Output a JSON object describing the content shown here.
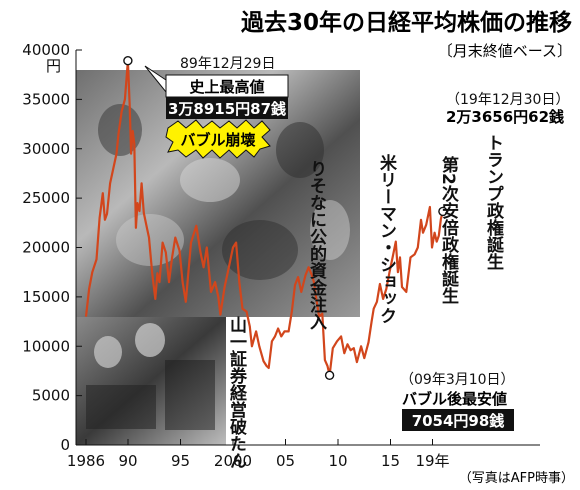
{
  "chart_data": {
    "type": "line",
    "title": "過去30年の日経平均株価の推移",
    "subtitle": "〔月末終値ベース〕",
    "ylabel": "円",
    "xlabel": "",
    "ylim": [
      0,
      40000
    ],
    "yticks": [
      0,
      5000,
      10000,
      15000,
      20000,
      25000,
      30000,
      35000,
      40000
    ],
    "xticks": [
      {
        "year": 1986,
        "label": "1986"
      },
      {
        "year": 1990,
        "label": "90"
      },
      {
        "year": 1995,
        "label": "95"
      },
      {
        "year": 2000,
        "label": "2000"
      },
      {
        "year": 2005,
        "label": "05"
      },
      {
        "year": 2010,
        "label": "10"
      },
      {
        "year": 2015,
        "label": "15"
      },
      {
        "year": 2019,
        "label": "19年"
      }
    ],
    "grid": false,
    "series": [
      {
        "color": "#d2461c",
        "points": [
          [
            1986.0,
            13000
          ],
          [
            1986.3,
            15800
          ],
          [
            1986.6,
            17500
          ],
          [
            1987.0,
            18800
          ],
          [
            1987.3,
            23000
          ],
          [
            1987.6,
            25500
          ],
          [
            1987.8,
            22800
          ],
          [
            1988.0,
            23400
          ],
          [
            1988.3,
            26500
          ],
          [
            1988.6,
            28000
          ],
          [
            1988.9,
            29500
          ],
          [
            1989.1,
            31500
          ],
          [
            1989.4,
            33800
          ],
          [
            1989.7,
            35000
          ],
          [
            1989.99,
            38915
          ],
          [
            1990.15,
            34600
          ],
          [
            1990.3,
            29500
          ],
          [
            1990.45,
            31800
          ],
          [
            1990.6,
            30500
          ],
          [
            1990.75,
            22000
          ],
          [
            1990.9,
            24500
          ],
          [
            1991.1,
            23700
          ],
          [
            1991.3,
            26500
          ],
          [
            1991.5,
            23500
          ],
          [
            1991.8,
            22000
          ],
          [
            1992.0,
            21000
          ],
          [
            1992.3,
            17500
          ],
          [
            1992.6,
            14800
          ],
          [
            1992.8,
            17400
          ],
          [
            1993.0,
            16500
          ],
          [
            1993.3,
            20500
          ],
          [
            1993.6,
            19500
          ],
          [
            1993.9,
            16500
          ],
          [
            1994.2,
            19000
          ],
          [
            1994.5,
            21000
          ],
          [
            1994.9,
            19700
          ],
          [
            1995.2,
            16500
          ],
          [
            1995.5,
            14500
          ],
          [
            1995.75,
            17500
          ],
          [
            1996.0,
            20500
          ],
          [
            1996.5,
            22200
          ],
          [
            1996.9,
            19500
          ],
          [
            1997.2,
            18000
          ],
          [
            1997.5,
            20000
          ],
          [
            1997.9,
            15500
          ],
          [
            1998.3,
            16500
          ],
          [
            1998.6,
            15000
          ],
          [
            1998.8,
            13200
          ],
          [
            1999.2,
            16000
          ],
          [
            1999.5,
            17500
          ],
          [
            2000.0,
            20000
          ],
          [
            2000.3,
            20500
          ],
          [
            2000.6,
            16500
          ],
          [
            2000.9,
            13800
          ],
          [
            2001.3,
            13500
          ],
          [
            2001.6,
            12000
          ],
          [
            2001.8,
            10000
          ],
          [
            2002.2,
            11500
          ],
          [
            2002.5,
            10000
          ],
          [
            2002.9,
            8500
          ],
          [
            2003.2,
            8000
          ],
          [
            2003.4,
            7800
          ],
          [
            2003.7,
            10500
          ],
          [
            2004.0,
            11000
          ],
          [
            2004.3,
            11800
          ],
          [
            2004.6,
            11000
          ],
          [
            2004.9,
            11500
          ],
          [
            2005.3,
            11500
          ],
          [
            2005.6,
            13500
          ],
          [
            2005.9,
            16200
          ],
          [
            2006.2,
            17000
          ],
          [
            2006.5,
            15500
          ],
          [
            2006.9,
            17200
          ],
          [
            2007.2,
            18000
          ],
          [
            2007.5,
            17200
          ],
          [
            2007.7,
            16500
          ],
          [
            2007.9,
            15000
          ],
          [
            2008.2,
            13000
          ],
          [
            2008.5,
            13300
          ],
          [
            2008.75,
            8600
          ],
          [
            2009.0,
            8000
          ],
          [
            2009.2,
            7054
          ],
          [
            2009.5,
            9800
          ],
          [
            2009.9,
            10500
          ],
          [
            2010.3,
            11000
          ],
          [
            2010.6,
            9300
          ],
          [
            2010.9,
            10200
          ],
          [
            2011.2,
            9600
          ],
          [
            2011.5,
            9800
          ],
          [
            2011.8,
            8400
          ],
          [
            2012.2,
            10000
          ],
          [
            2012.5,
            8800
          ],
          [
            2012.9,
            10400
          ],
          [
            2013.2,
            12500
          ],
          [
            2013.4,
            13800
          ],
          [
            2013.7,
            14500
          ],
          [
            2013.99,
            16300
          ],
          [
            2014.3,
            14800
          ],
          [
            2014.6,
            15800
          ],
          [
            2014.9,
            17500
          ],
          [
            2015.2,
            19000
          ],
          [
            2015.5,
            20600
          ],
          [
            2015.7,
            17500
          ],
          [
            2015.9,
            19000
          ],
          [
            2016.1,
            16000
          ],
          [
            2016.5,
            15500
          ],
          [
            2016.9,
            19000
          ],
          [
            2017.3,
            19300
          ],
          [
            2017.6,
            20000
          ],
          [
            2017.9,
            22800
          ],
          [
            2018.1,
            21500
          ],
          [
            2018.4,
            22300
          ],
          [
            2018.75,
            24100
          ],
          [
            2018.95,
            20000
          ],
          [
            2019.2,
            21500
          ],
          [
            2019.4,
            20600
          ],
          [
            2019.6,
            21200
          ],
          [
            2019.8,
            22900
          ],
          [
            2019.99,
            23656
          ]
        ]
      }
    ],
    "annotations": {
      "peak_date": "89年12月29日",
      "peak_label": "史上最高値",
      "peak_value": "3万8915円87銭",
      "bubble": "バブル崩壊",
      "yamaichi": "山一証券経営破たん",
      "resona": "りそなに公的資金注入",
      "lehman": "米リーマン・ショック",
      "abe": "第2次安倍政権誕生",
      "trump": "トランプ政権誕生",
      "latest_date": "（19年12月30日）",
      "latest_value": "2万3656円62銭",
      "low_date": "（09年3月10日）",
      "low_label": "バブル後最安値",
      "low_value": "7054円98銭"
    },
    "photo_credit": "（写真はAFP時事）"
  }
}
